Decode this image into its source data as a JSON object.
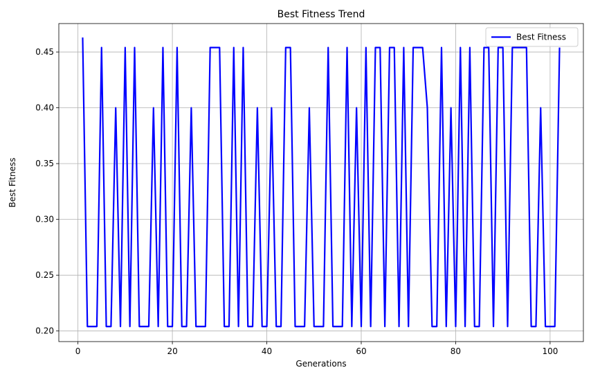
{
  "chart_data": {
    "type": "line",
    "title": "Best Fitness Trend",
    "xlabel": "Generations",
    "ylabel": "Best Fitness",
    "xlim": [
      -4.05,
      107.05
    ],
    "ylim": [
      0.1905,
      0.4755
    ],
    "xticks": [
      0,
      20,
      40,
      60,
      80,
      100
    ],
    "yticks": [
      0.2,
      0.25,
      0.3,
      0.35,
      0.4,
      0.45
    ],
    "xtick_labels": [
      "0",
      "20",
      "40",
      "60",
      "80",
      "100"
    ],
    "ytick_labels": [
      "0.20",
      "0.25",
      "0.30",
      "0.35",
      "0.40",
      "0.45"
    ],
    "grid": true,
    "legend": {
      "position": "top-right",
      "entries": [
        "Best Fitness"
      ]
    },
    "series": [
      {
        "name": "Best Fitness",
        "color": "#0000ff",
        "x": [
          1,
          2,
          3,
          4,
          5,
          6,
          7,
          8,
          9,
          10,
          11,
          12,
          13,
          14,
          15,
          16,
          17,
          18,
          19,
          20,
          21,
          22,
          23,
          24,
          25,
          26,
          27,
          28,
          29,
          30,
          31,
          32,
          33,
          34,
          35,
          36,
          37,
          38,
          39,
          40,
          41,
          42,
          43,
          44,
          45,
          46,
          47,
          48,
          49,
          50,
          51,
          52,
          53,
          54,
          55,
          56,
          57,
          58,
          59,
          60,
          61,
          62,
          63,
          64,
          65,
          66,
          67,
          68,
          69,
          70,
          71,
          72,
          73,
          74,
          75,
          76,
          77,
          78,
          79,
          80,
          81,
          82,
          83,
          84,
          85,
          86,
          87,
          88,
          89,
          90,
          91,
          92,
          93,
          94,
          95,
          96,
          97,
          98,
          99,
          100,
          101,
          102
        ],
        "y": [
          0.463,
          0.204,
          0.204,
          0.204,
          0.454,
          0.204,
          0.204,
          0.4,
          0.204,
          0.454,
          0.204,
          0.454,
          0.204,
          0.204,
          0.204,
          0.4,
          0.204,
          0.454,
          0.204,
          0.204,
          0.454,
          0.204,
          0.204,
          0.4,
          0.204,
          0.204,
          0.204,
          0.454,
          0.454,
          0.454,
          0.204,
          0.204,
          0.454,
          0.204,
          0.454,
          0.204,
          0.204,
          0.4,
          0.204,
          0.204,
          0.4,
          0.204,
          0.204,
          0.454,
          0.454,
          0.204,
          0.204,
          0.204,
          0.4,
          0.204,
          0.204,
          0.204,
          0.454,
          0.204,
          0.204,
          0.204,
          0.454,
          0.204,
          0.4,
          0.204,
          0.454,
          0.204,
          0.454,
          0.454,
          0.204,
          0.454,
          0.454,
          0.204,
          0.454,
          0.204,
          0.454,
          0.454,
          0.454,
          0.4,
          0.204,
          0.204,
          0.454,
          0.204,
          0.4,
          0.204,
          0.454,
          0.204,
          0.454,
          0.204,
          0.204,
          0.454,
          0.454,
          0.204,
          0.454,
          0.454,
          0.204,
          0.454,
          0.454,
          0.454,
          0.454,
          0.204,
          0.204,
          0.4,
          0.204,
          0.204,
          0.204,
          0.454
        ]
      }
    ]
  }
}
